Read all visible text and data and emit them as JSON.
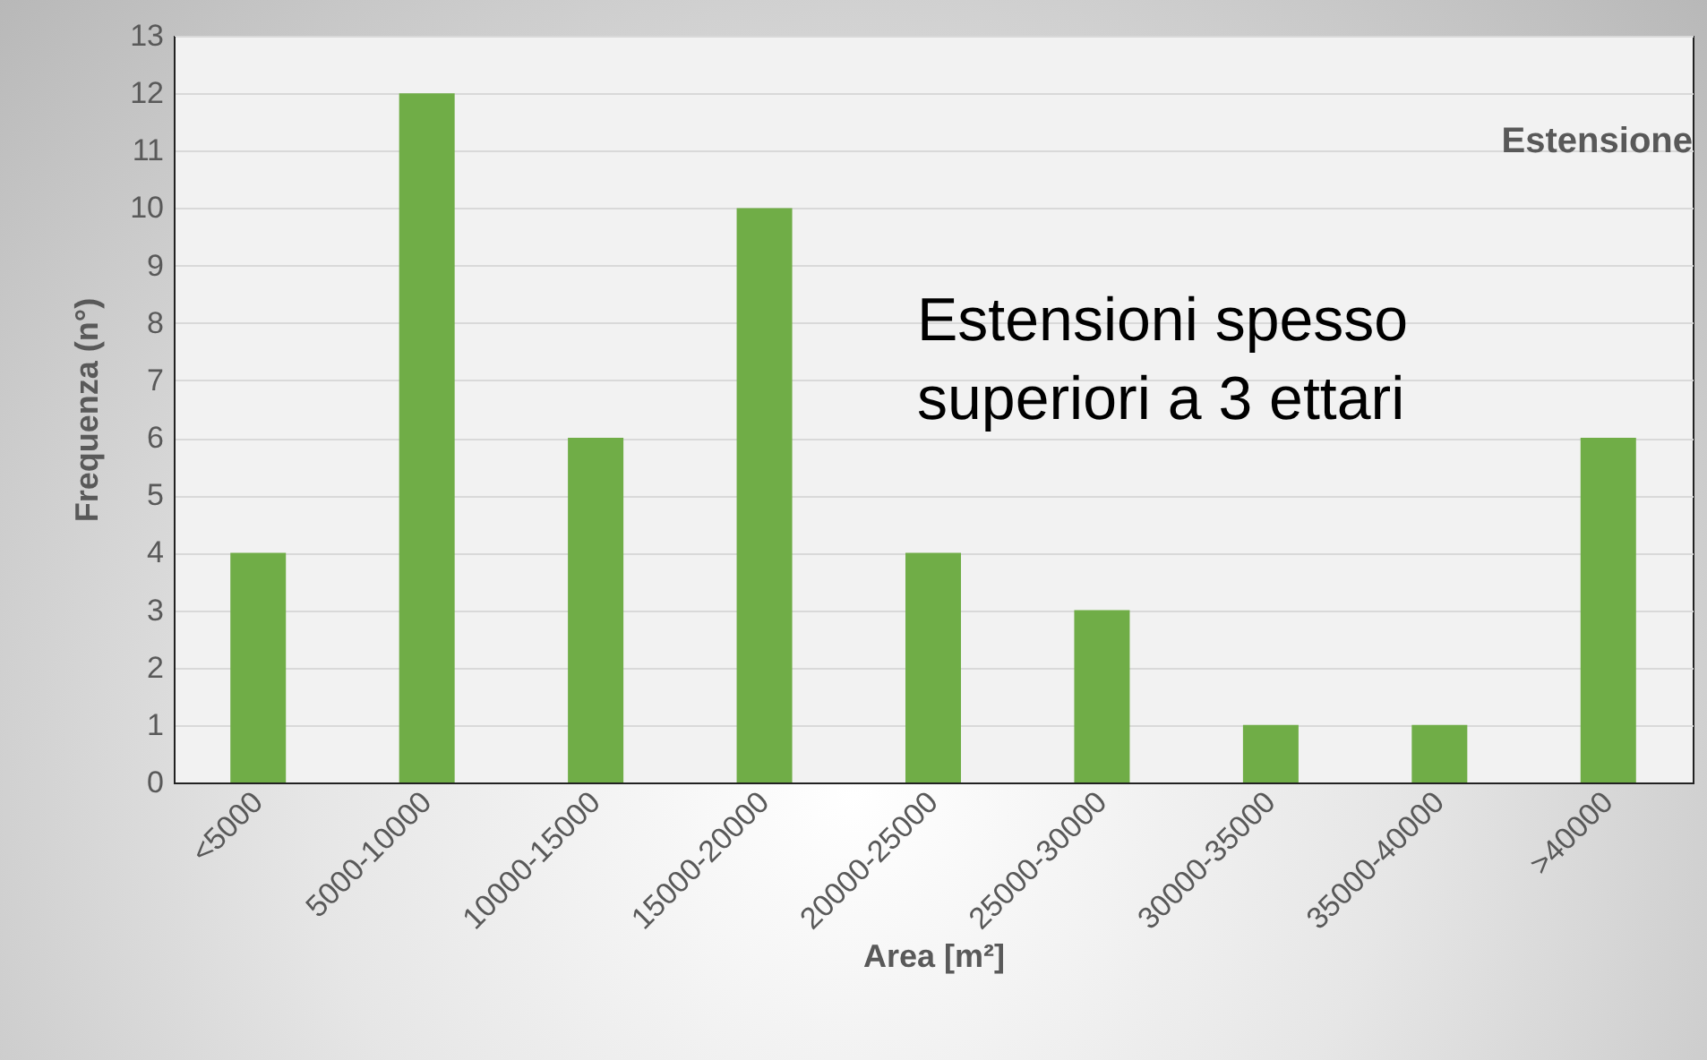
{
  "chart_data": {
    "type": "bar",
    "title": "Estensione",
    "xlabel": "Area [m²]",
    "ylabel": "Frequenza (n°)",
    "categories": [
      "<5000",
      "5000-10000",
      "10000-15000",
      "15000-20000",
      "20000-25000",
      "25000-30000",
      "30000-35000",
      "35000-40000",
      ">40000"
    ],
    "values": [
      4,
      12,
      6,
      10,
      4,
      3,
      1,
      1,
      6
    ],
    "color": "#70ad47",
    "ylim": [
      0,
      13
    ],
    "yticks": [
      0,
      1,
      2,
      3,
      4,
      5,
      6,
      7,
      8,
      9,
      10,
      11,
      12,
      13
    ],
    "grid": "y",
    "annotations": [
      "Estensioni spesso superiori a 3 ettari"
    ]
  }
}
